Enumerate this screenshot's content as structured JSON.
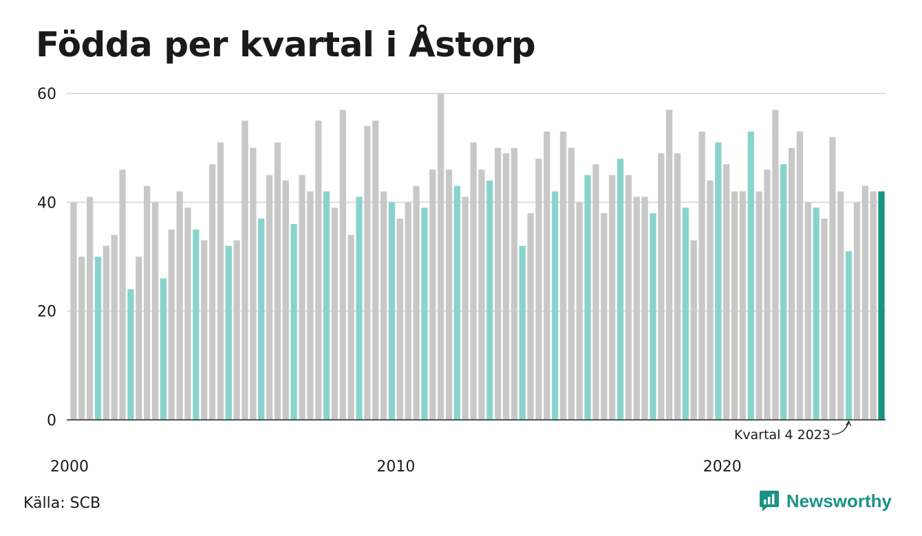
{
  "title": "Födda per kvartal i Åstorp",
  "source": "Källa: SCB",
  "brand": "Newsworthy",
  "colors": {
    "bar_default": "#c8c8c8",
    "bar_q4": "#88d4cc",
    "bar_latest": "#1a9384",
    "brand": "#1a9384",
    "grid": "#dddddd",
    "axis": "#222222"
  },
  "chart_data": {
    "type": "bar",
    "title": "Födda per kvartal i Åstorp",
    "ylim": [
      0,
      60
    ],
    "yticks": [
      0,
      20,
      40,
      60
    ],
    "xticks": [
      "2000",
      "2010",
      "2020"
    ],
    "grid": true,
    "annotation": "Kvartal 4 2023",
    "highlight_rule": "quarter 4 bars shown in teal; latest bar in dark teal",
    "series": [
      {
        "values": [
          40,
          30,
          41,
          30,
          32,
          34,
          46,
          24,
          30,
          43,
          40,
          26,
          35,
          42,
          39,
          35,
          33,
          47,
          51,
          32,
          33,
          55,
          50,
          37,
          45,
          51,
          44,
          36,
          45,
          42,
          55,
          42,
          39,
          57,
          34,
          41,
          54,
          55,
          42,
          40,
          37,
          40,
          43,
          39,
          46,
          60,
          46,
          43,
          41,
          51,
          46,
          44,
          50,
          49,
          50,
          32,
          38,
          48,
          53,
          42,
          53,
          50,
          40,
          45,
          47,
          38,
          45,
          48,
          45,
          41,
          41,
          38,
          49,
          57,
          49,
          39,
          33,
          53,
          44,
          51,
          47,
          42,
          42,
          53,
          42,
          46,
          57,
          47,
          50,
          53,
          40,
          39,
          37,
          52,
          42,
          31,
          40,
          43,
          42,
          42
        ]
      }
    ]
  }
}
